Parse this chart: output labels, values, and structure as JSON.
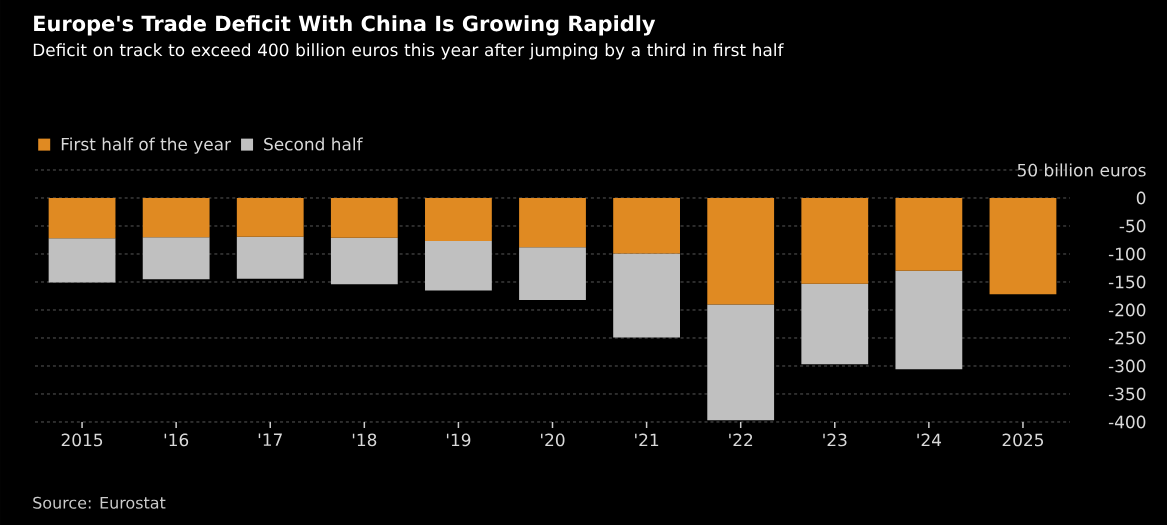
{
  "chart_data": {
    "type": "bar",
    "stacked": true,
    "title": "Europe's Trade Deficit With China Is Growing Rapidly",
    "subtitle": "Deficit on track to exceed 400 billion euros this year after jumping by a third in first half",
    "categories": [
      "2015",
      "'16",
      "'17",
      "'18",
      "'19",
      "'20",
      "'21",
      "'22",
      "'23",
      "'24",
      "2025"
    ],
    "series": [
      {
        "name": "First half of the year",
        "color": "#e08a22",
        "values": [
          -72,
          -70,
          -69,
          -71,
          -77,
          -88,
          -99,
          -190,
          -153,
          -130,
          -172
        ]
      },
      {
        "name": "Second half",
        "color": "#c0c0c0",
        "values": [
          -79,
          -75,
          -75,
          -83,
          -88,
          -94,
          -150,
          -207,
          -144,
          -176,
          null
        ]
      }
    ],
    "ylim": [
      -400,
      50
    ],
    "yticks": [
      {
        "value": 50,
        "label": "50 billion euros"
      },
      0,
      -50,
      -100,
      -150,
      -200,
      -250,
      -300,
      -350,
      -400
    ],
    "grid": "y",
    "legend": "top left",
    "annotations": [
      "Source: Eurostat"
    ]
  }
}
